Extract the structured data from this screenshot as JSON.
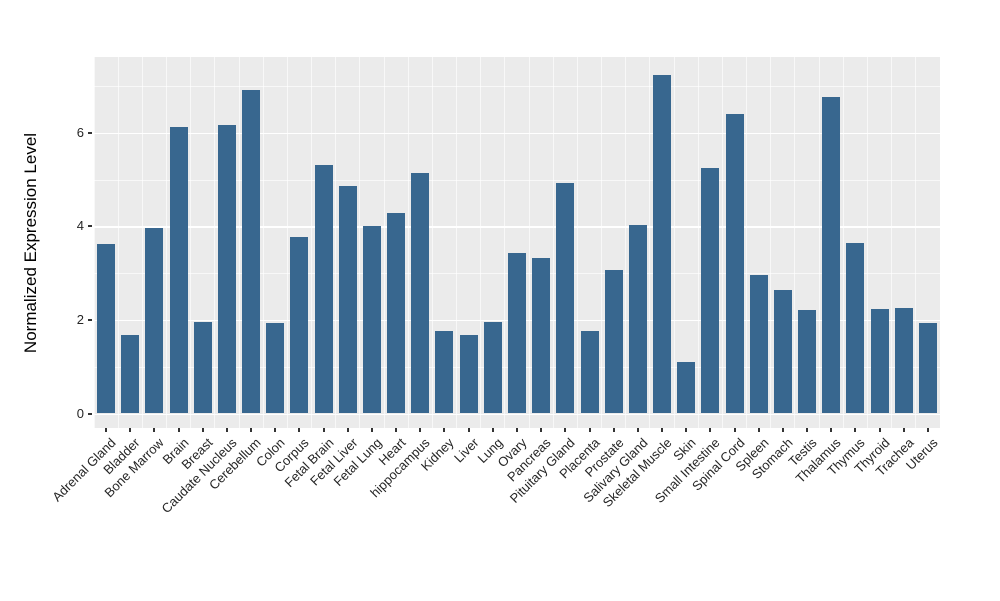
{
  "chart_data": {
    "type": "bar",
    "title": "",
    "xlabel": "",
    "ylabel": "Normalized Expression Level",
    "legend_position": "none",
    "grid": "on",
    "panel_bg": "#EBEBEB",
    "grid_color": "#FFFFFF",
    "bar_color": "#38678F",
    "tick_text_color": "#262626",
    "tick_mark_color": "#333333",
    "ylim": [
      0,
      7.62
    ],
    "yticks_major": [
      0,
      2,
      4,
      6
    ],
    "yticks_minor": [
      1,
      3,
      5,
      7
    ],
    "categories": [
      "Adrenal Gland",
      "Bladder",
      "Bone Marrow",
      "Brain",
      "Breast",
      "Caudate Nucleus",
      "Cerebellum",
      "Colon",
      "Corpus",
      "Fetal Brain",
      "Fetal Liver",
      "Fetal Lung",
      "Heart",
      "hippocampus",
      "Kidney",
      "Liver",
      "Lung",
      "Ovary",
      "Pancreas",
      "Pituitary Gland",
      "Placenta",
      "Prostate",
      "Salivary Gland",
      "Skeletal Muscle",
      "Skin",
      "Small Intestine",
      "Spinal Cord",
      "Spleen",
      "Stomach",
      "Testis",
      "Thalamus",
      "Thymus",
      "Thyroid",
      "Trachea",
      "Uterus"
    ],
    "values": [
      3.62,
      1.68,
      3.96,
      6.12,
      1.95,
      6.16,
      6.92,
      1.93,
      3.78,
      5.3,
      4.86,
      4.01,
      4.28,
      5.14,
      1.77,
      1.68,
      1.95,
      3.42,
      3.33,
      4.92,
      1.77,
      3.07,
      4.03,
      7.24,
      1.09,
      5.25,
      6.41,
      2.96,
      2.64,
      2.21,
      6.77,
      3.64,
      2.23,
      2.25,
      1.94
    ]
  }
}
